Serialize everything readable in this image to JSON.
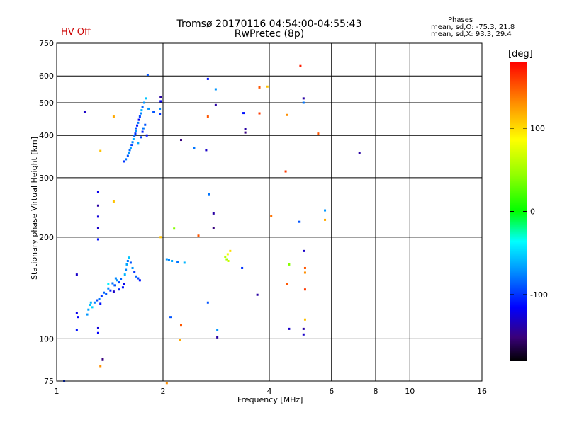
{
  "header": {
    "title_line1": "Tromsø 20170116 04:54:00-04:55:43",
    "title_line2": "RwPretec (8p)",
    "hv_status": "HV Off",
    "phases_title": "Phases",
    "phases_o": "mean, sd,O: -75.3, 21.8",
    "phases_x": "mean, sd,X:  93.3, 29.4"
  },
  "chart_data": {
    "type": "scatter",
    "title": "Tromsø 20170116 04:54:00-04:55:43",
    "subtitle": "RwPretec (8p)",
    "xlabel": "Frequency [MHz]",
    "ylabel": "Stationary phase Virtual Height [km]",
    "x_scale": "log",
    "y_scale": "log",
    "xlim": [
      1,
      16
    ],
    "ylim": [
      75,
      750
    ],
    "x_ticks": [
      1,
      2,
      4,
      6,
      8,
      10,
      16
    ],
    "y_ticks": [
      75,
      100,
      200,
      300,
      400,
      500,
      600,
      750
    ],
    "grid": true,
    "colorbar": {
      "label": "[deg]",
      "range": [
        -180,
        180
      ],
      "ticks": [
        100,
        0,
        -100
      ]
    },
    "points": [
      {
        "f": 1.14,
        "h": 155,
        "p": -130
      },
      {
        "f": 1.14,
        "h": 119,
        "p": -120
      },
      {
        "f": 1.15,
        "h": 116,
        "p": -115
      },
      {
        "f": 1.14,
        "h": 106,
        "p": -110
      },
      {
        "f": 1.22,
        "h": 118,
        "p": -70
      },
      {
        "f": 1.23,
        "h": 122,
        "p": -65
      },
      {
        "f": 1.24,
        "h": 126,
        "p": -55
      },
      {
        "f": 1.25,
        "h": 128,
        "p": -60
      },
      {
        "f": 1.26,
        "h": 124,
        "p": -50
      },
      {
        "f": 1.28,
        "h": 128,
        "p": -75
      },
      {
        "f": 1.3,
        "h": 130,
        "p": -95
      },
      {
        "f": 1.32,
        "h": 131,
        "p": -80
      },
      {
        "f": 1.34,
        "h": 134,
        "p": -100
      },
      {
        "f": 1.36,
        "h": 137,
        "p": -85
      },
      {
        "f": 1.38,
        "h": 136,
        "p": -90
      },
      {
        "f": 1.4,
        "h": 141,
        "p": -75
      },
      {
        "f": 1.42,
        "h": 139,
        "p": -105
      },
      {
        "f": 1.44,
        "h": 146,
        "p": -80
      },
      {
        "f": 1.46,
        "h": 144,
        "p": -90
      },
      {
        "f": 1.48,
        "h": 149,
        "p": -70
      },
      {
        "f": 1.5,
        "h": 147,
        "p": -95
      },
      {
        "f": 1.52,
        "h": 150,
        "p": -85
      },
      {
        "f": 1.54,
        "h": 142,
        "p": -110
      },
      {
        "f": 1.56,
        "h": 155,
        "p": -60
      },
      {
        "f": 1.57,
        "h": 160,
        "p": -75
      },
      {
        "f": 1.58,
        "h": 166,
        "p": -65
      },
      {
        "f": 1.59,
        "h": 170,
        "p": -80
      },
      {
        "f": 1.6,
        "h": 174,
        "p": -55
      },
      {
        "f": 1.62,
        "h": 168,
        "p": -90
      },
      {
        "f": 1.64,
        "h": 162,
        "p": -70
      },
      {
        "f": 1.66,
        "h": 158,
        "p": -100
      },
      {
        "f": 1.68,
        "h": 153,
        "p": -85
      },
      {
        "f": 1.7,
        "h": 151,
        "p": -95
      },
      {
        "f": 1.72,
        "h": 149,
        "p": -110
      },
      {
        "f": 1.55,
        "h": 145,
        "p": -120
      },
      {
        "f": 1.5,
        "h": 140,
        "p": -105
      },
      {
        "f": 1.45,
        "h": 138,
        "p": -130
      },
      {
        "f": 1.47,
        "h": 151,
        "p": -75
      },
      {
        "f": 1.4,
        "h": 145,
        "p": -40
      },
      {
        "f": 1.33,
        "h": 127,
        "p": -110
      },
      {
        "f": 1.31,
        "h": 108,
        "p": -125
      },
      {
        "f": 1.31,
        "h": 104,
        "p": -115
      },
      {
        "f": 1.35,
        "h": 87,
        "p": -150
      },
      {
        "f": 1.33,
        "h": 83,
        "p": 130
      },
      {
        "f": 1.31,
        "h": 197,
        "p": -110
      },
      {
        "f": 1.31,
        "h": 213,
        "p": -130
      },
      {
        "f": 1.31,
        "h": 230,
        "p": -125
      },
      {
        "f": 1.31,
        "h": 248,
        "p": -140
      },
      {
        "f": 1.31,
        "h": 272,
        "p": -120
      },
      {
        "f": 1.45,
        "h": 255,
        "p": 110
      },
      {
        "f": 1.55,
        "h": 335,
        "p": -100
      },
      {
        "f": 1.57,
        "h": 340,
        "p": -80
      },
      {
        "f": 1.59,
        "h": 348,
        "p": -90
      },
      {
        "f": 1.6,
        "h": 355,
        "p": -70
      },
      {
        "f": 1.61,
        "h": 362,
        "p": -85
      },
      {
        "f": 1.62,
        "h": 368,
        "p": -65
      },
      {
        "f": 1.63,
        "h": 375,
        "p": -95
      },
      {
        "f": 1.64,
        "h": 382,
        "p": -75
      },
      {
        "f": 1.65,
        "h": 390,
        "p": -60
      },
      {
        "f": 1.66,
        "h": 398,
        "p": -85
      },
      {
        "f": 1.67,
        "h": 405,
        "p": -100
      },
      {
        "f": 1.68,
        "h": 412,
        "p": -70
      },
      {
        "f": 1.68,
        "h": 420,
        "p": -90
      },
      {
        "f": 1.69,
        "h": 428,
        "p": -110
      },
      {
        "f": 1.7,
        "h": 436,
        "p": -80
      },
      {
        "f": 1.71,
        "h": 445,
        "p": -120
      },
      {
        "f": 1.72,
        "h": 455,
        "p": -95
      },
      {
        "f": 1.73,
        "h": 465,
        "p": -75
      },
      {
        "f": 1.74,
        "h": 475,
        "p": -60
      },
      {
        "f": 1.75,
        "h": 485,
        "p": -85
      },
      {
        "f": 1.77,
        "h": 500,
        "p": -70
      },
      {
        "f": 1.79,
        "h": 515,
        "p": -55
      },
      {
        "f": 1.7,
        "h": 380,
        "p": -65
      },
      {
        "f": 1.75,
        "h": 410,
        "p": -105
      },
      {
        "f": 1.78,
        "h": 430,
        "p": -90
      },
      {
        "f": 1.8,
        "h": 400,
        "p": -110
      },
      {
        "f": 1.76,
        "h": 420,
        "p": -80
      },
      {
        "f": 1.73,
        "h": 395,
        "p": -95
      },
      {
        "f": 1.81,
        "h": 605,
        "p": -90
      },
      {
        "f": 1.45,
        "h": 455,
        "p": 120
      },
      {
        "f": 1.33,
        "h": 360,
        "p": 110
      },
      {
        "f": 1.2,
        "h": 470,
        "p": -130
      },
      {
        "f": 1.82,
        "h": 480,
        "p": -70
      },
      {
        "f": 1.88,
        "h": 470,
        "p": -90
      },
      {
        "f": 1.97,
        "h": 520,
        "p": -140
      },
      {
        "f": 1.97,
        "h": 505,
        "p": -120
      },
      {
        "f": 1.96,
        "h": 480,
        "p": -75
      },
      {
        "f": 1.96,
        "h": 462,
        "p": -100
      },
      {
        "f": 1.97,
        "h": 200,
        "p": 110
      },
      {
        "f": 2.05,
        "h": 172,
        "p": -70
      },
      {
        "f": 2.08,
        "h": 171,
        "p": -75
      },
      {
        "f": 2.12,
        "h": 170,
        "p": -65
      },
      {
        "f": 2.2,
        "h": 169,
        "p": -80
      },
      {
        "f": 2.3,
        "h": 168,
        "p": -60
      },
      {
        "f": 2.15,
        "h": 212,
        "p": 40
      },
      {
        "f": 2.1,
        "h": 116,
        "p": -90
      },
      {
        "f": 2.25,
        "h": 110,
        "p": 150
      },
      {
        "f": 2.23,
        "h": 99,
        "p": 120
      },
      {
        "f": 2.05,
        "h": 74,
        "p": 130
      },
      {
        "f": 2.25,
        "h": 388,
        "p": -150
      },
      {
        "f": 2.45,
        "h": 368,
        "p": -80
      },
      {
        "f": 2.65,
        "h": 362,
        "p": -130
      },
      {
        "f": 2.68,
        "h": 588,
        "p": -110
      },
      {
        "f": 2.82,
        "h": 548,
        "p": -70
      },
      {
        "f": 2.82,
        "h": 492,
        "p": -140
      },
      {
        "f": 2.68,
        "h": 455,
        "p": 150
      },
      {
        "f": 2.7,
        "h": 268,
        "p": -80
      },
      {
        "f": 2.78,
        "h": 235,
        "p": -140
      },
      {
        "f": 2.78,
        "h": 213,
        "p": -150
      },
      {
        "f": 2.52,
        "h": 202,
        "p": 150
      },
      {
        "f": 2.68,
        "h": 128,
        "p": -90
      },
      {
        "f": 2.85,
        "h": 106,
        "p": -70
      },
      {
        "f": 2.85,
        "h": 101,
        "p": -140
      },
      {
        "f": 3.0,
        "h": 175,
        "p": 60
      },
      {
        "f": 3.03,
        "h": 172,
        "p": 50
      },
      {
        "f": 3.06,
        "h": 170,
        "p": 65
      },
      {
        "f": 3.1,
        "h": 182,
        "p": 100
      },
      {
        "f": 3.05,
        "h": 178,
        "p": 80
      },
      {
        "f": 3.35,
        "h": 162,
        "p": -100
      },
      {
        "f": 3.38,
        "h": 466,
        "p": -110
      },
      {
        "f": 3.42,
        "h": 418,
        "p": -140
      },
      {
        "f": 3.42,
        "h": 408,
        "p": -150
      },
      {
        "f": 3.7,
        "h": 135,
        "p": -140
      },
      {
        "f": 3.75,
        "h": 555,
        "p": 150
      },
      {
        "f": 3.75,
        "h": 465,
        "p": 160
      },
      {
        "f": 3.95,
        "h": 558,
        "p": 110
      },
      {
        "f": 4.05,
        "h": 231,
        "p": 140
      },
      {
        "f": 4.5,
        "h": 145,
        "p": 150
      },
      {
        "f": 4.55,
        "h": 166,
        "p": 40
      },
      {
        "f": 4.45,
        "h": 313,
        "p": 160
      },
      {
        "f": 4.5,
        "h": 460,
        "p": 130
      },
      {
        "f": 4.9,
        "h": 642,
        "p": 170
      },
      {
        "f": 5.0,
        "h": 515,
        "p": -140
      },
      {
        "f": 5.0,
        "h": 500,
        "p": -80
      },
      {
        "f": 5.02,
        "h": 182,
        "p": -130
      },
      {
        "f": 5.05,
        "h": 162,
        "p": 150
      },
      {
        "f": 5.05,
        "h": 157,
        "p": 130
      },
      {
        "f": 5.05,
        "h": 140,
        "p": 160
      },
      {
        "f": 5.05,
        "h": 114,
        "p": 110
      },
      {
        "f": 5.0,
        "h": 107,
        "p": -140
      },
      {
        "f": 5.0,
        "h": 103,
        "p": -130
      },
      {
        "f": 4.85,
        "h": 222,
        "p": -90
      },
      {
        "f": 4.55,
        "h": 107,
        "p": -130
      },
      {
        "f": 5.5,
        "h": 405,
        "p": 150
      },
      {
        "f": 5.75,
        "h": 240,
        "p": -70
      },
      {
        "f": 5.75,
        "h": 225,
        "p": 120
      },
      {
        "f": 7.2,
        "h": 355,
        "p": -140
      },
      {
        "f": 1.05,
        "h": 75,
        "p": -100
      }
    ]
  }
}
